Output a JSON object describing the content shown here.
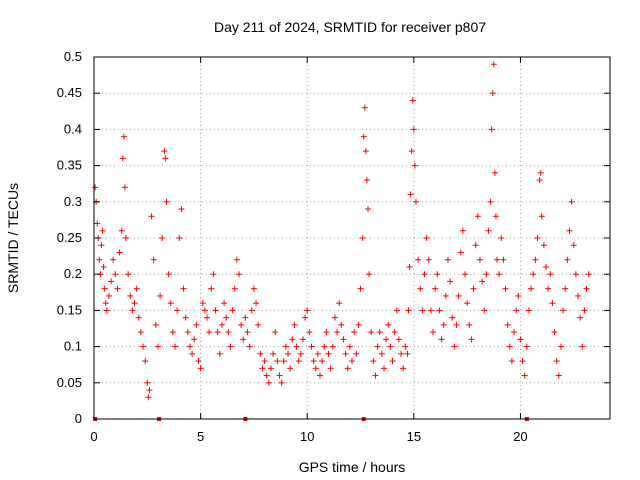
{
  "chart_data": {
    "type": "scatter",
    "title": "Day 211 of 2024, SRMTID for receiver p807",
    "xlabel": "GPS time / hours",
    "ylabel": "SRMTID / TECUs",
    "xlim": [
      0,
      24.2
    ],
    "ylim": [
      0,
      0.5
    ],
    "xticks": [
      0,
      5,
      10,
      15,
      20
    ],
    "xtick_labels": [
      "0",
      "5",
      "10",
      "15",
      "20"
    ],
    "yticks": [
      0,
      0.05,
      0.1,
      0.15,
      0.2,
      0.25,
      0.3,
      0.35,
      0.4,
      0.45,
      0.5
    ],
    "ytick_labels": [
      "0",
      "0.05",
      "0.1",
      "0.15",
      "0.2",
      "0.25",
      "0.3",
      "0.35",
      "0.4",
      "0.45",
      "0.5"
    ],
    "grid": true,
    "marker": "+",
    "color": "#ff0000",
    "series": [
      {
        "name": "SRMTID",
        "points": [
          [
            0.05,
            0.32
          ],
          [
            0.1,
            0.3
          ],
          [
            0.15,
            0.27
          ],
          [
            0.2,
            0.25
          ],
          [
            0.25,
            0.22
          ],
          [
            0.3,
            0.2
          ],
          [
            0.35,
            0.24
          ],
          [
            0.4,
            0.26
          ],
          [
            0.45,
            0.21
          ],
          [
            0.5,
            0.18
          ],
          [
            0.55,
            0.16
          ],
          [
            0.6,
            0.15
          ],
          [
            0.7,
            0.17
          ],
          [
            0.8,
            0.19
          ],
          [
            0.9,
            0.22
          ],
          [
            1.0,
            0.2
          ],
          [
            1.1,
            0.18
          ],
          [
            1.2,
            0.23
          ],
          [
            1.3,
            0.26
          ],
          [
            1.35,
            0.36
          ],
          [
            1.4,
            0.39
          ],
          [
            1.45,
            0.32
          ],
          [
            1.5,
            0.25
          ],
          [
            1.6,
            0.2
          ],
          [
            1.7,
            0.17
          ],
          [
            1.8,
            0.15
          ],
          [
            1.9,
            0.16
          ],
          [
            2.0,
            0.18
          ],
          [
            2.1,
            0.14
          ],
          [
            2.2,
            0.12
          ],
          [
            2.3,
            0.1
          ],
          [
            2.4,
            0.08
          ],
          [
            2.5,
            0.05
          ],
          [
            2.55,
            0.03
          ],
          [
            2.6,
            0.04
          ],
          [
            2.7,
            0.28
          ],
          [
            2.8,
            0.22
          ],
          [
            2.9,
            0.13
          ],
          [
            3.0,
            0.1
          ],
          [
            3.1,
            0.17
          ],
          [
            3.2,
            0.25
          ],
          [
            3.3,
            0.37
          ],
          [
            3.35,
            0.36
          ],
          [
            3.4,
            0.3
          ],
          [
            3.5,
            0.2
          ],
          [
            3.6,
            0.16
          ],
          [
            3.7,
            0.12
          ],
          [
            3.8,
            0.1
          ],
          [
            3.9,
            0.15
          ],
          [
            4.0,
            0.25
          ],
          [
            4.1,
            0.29
          ],
          [
            4.2,
            0.18
          ],
          [
            4.3,
            0.14
          ],
          [
            4.4,
            0.12
          ],
          [
            4.5,
            0.1
          ],
          [
            4.6,
            0.09
          ],
          [
            4.7,
            0.11
          ],
          [
            4.8,
            0.13
          ],
          [
            4.9,
            0.08
          ],
          [
            5.0,
            0.07
          ],
          [
            5.1,
            0.16
          ],
          [
            5.2,
            0.15
          ],
          [
            5.3,
            0.14
          ],
          [
            5.4,
            0.12
          ],
          [
            5.5,
            0.18
          ],
          [
            5.6,
            0.2
          ],
          [
            5.7,
            0.15
          ],
          [
            5.8,
            0.12
          ],
          [
            5.9,
            0.09
          ],
          [
            6.0,
            0.13
          ],
          [
            6.1,
            0.16
          ],
          [
            6.2,
            0.14
          ],
          [
            6.3,
            0.12
          ],
          [
            6.4,
            0.1
          ],
          [
            6.5,
            0.15
          ],
          [
            6.6,
            0.18
          ],
          [
            6.7,
            0.22
          ],
          [
            6.8,
            0.2
          ],
          [
            6.9,
            0.13
          ],
          [
            7.0,
            0.11
          ],
          [
            7.1,
            0.14
          ],
          [
            7.2,
            0.12
          ],
          [
            7.3,
            0.1
          ],
          [
            7.4,
            0.15
          ],
          [
            7.5,
            0.18
          ],
          [
            7.6,
            0.16
          ],
          [
            7.7,
            0.13
          ],
          [
            7.8,
            0.09
          ],
          [
            7.9,
            0.07
          ],
          [
            8.0,
            0.08
          ],
          [
            8.1,
            0.06
          ],
          [
            8.2,
            0.05
          ],
          [
            8.3,
            0.07
          ],
          [
            8.4,
            0.09
          ],
          [
            8.5,
            0.12
          ],
          [
            8.6,
            0.08
          ],
          [
            8.7,
            0.06
          ],
          [
            8.8,
            0.05
          ],
          [
            8.9,
            0.08
          ],
          [
            9.0,
            0.1
          ],
          [
            9.1,
            0.09
          ],
          [
            9.2,
            0.07
          ],
          [
            9.3,
            0.11
          ],
          [
            9.4,
            0.13
          ],
          [
            9.5,
            0.1
          ],
          [
            9.6,
            0.08
          ],
          [
            9.7,
            0.09
          ],
          [
            9.8,
            0.11
          ],
          [
            9.9,
            0.14
          ],
          [
            10.0,
            0.15
          ],
          [
            10.1,
            0.12
          ],
          [
            10.2,
            0.1
          ],
          [
            10.3,
            0.08
          ],
          [
            10.4,
            0.07
          ],
          [
            10.5,
            0.09
          ],
          [
            10.6,
            0.06
          ],
          [
            10.7,
            0.08
          ],
          [
            10.8,
            0.1
          ],
          [
            10.9,
            0.12
          ],
          [
            11.0,
            0.09
          ],
          [
            11.1,
            0.07
          ],
          [
            11.2,
            0.1
          ],
          [
            11.3,
            0.14
          ],
          [
            11.4,
            0.12
          ],
          [
            11.5,
            0.16
          ],
          [
            11.6,
            0.13
          ],
          [
            11.7,
            0.11
          ],
          [
            11.8,
            0.09
          ],
          [
            11.9,
            0.07
          ],
          [
            12.0,
            0.1
          ],
          [
            12.1,
            0.08
          ],
          [
            12.2,
            0.12
          ],
          [
            12.3,
            0.09
          ],
          [
            12.4,
            0.13
          ],
          [
            12.5,
            0.18
          ],
          [
            12.6,
            0.25
          ],
          [
            12.65,
            0.39
          ],
          [
            12.7,
            0.43
          ],
          [
            12.75,
            0.37
          ],
          [
            12.8,
            0.33
          ],
          [
            12.85,
            0.29
          ],
          [
            12.9,
            0.2
          ],
          [
            13.0,
            0.12
          ],
          [
            13.1,
            0.08
          ],
          [
            13.2,
            0.06
          ],
          [
            13.3,
            0.1
          ],
          [
            13.4,
            0.12
          ],
          [
            13.5,
            0.09
          ],
          [
            13.6,
            0.07
          ],
          [
            13.7,
            0.11
          ],
          [
            13.8,
            0.13
          ],
          [
            13.9,
            0.1
          ],
          [
            14.0,
            0.08
          ],
          [
            14.1,
            0.12
          ],
          [
            14.2,
            0.15
          ],
          [
            14.3,
            0.11
          ],
          [
            14.4,
            0.09
          ],
          [
            14.5,
            0.07
          ],
          [
            14.6,
            0.1
          ],
          [
            14.7,
            0.09
          ],
          [
            14.75,
            0.15
          ],
          [
            14.8,
            0.21
          ],
          [
            14.85,
            0.31
          ],
          [
            14.9,
            0.37
          ],
          [
            14.95,
            0.44
          ],
          [
            15.0,
            0.4
          ],
          [
            15.05,
            0.35
          ],
          [
            15.1,
            0.3
          ],
          [
            15.2,
            0.22
          ],
          [
            15.3,
            0.18
          ],
          [
            15.4,
            0.15
          ],
          [
            15.5,
            0.2
          ],
          [
            15.6,
            0.25
          ],
          [
            15.7,
            0.22
          ],
          [
            15.8,
            0.15
          ],
          [
            15.9,
            0.12
          ],
          [
            16.0,
            0.18
          ],
          [
            16.1,
            0.2
          ],
          [
            16.2,
            0.15
          ],
          [
            16.3,
            0.11
          ],
          [
            16.4,
            0.13
          ],
          [
            16.5,
            0.17
          ],
          [
            16.6,
            0.22
          ],
          [
            16.7,
            0.19
          ],
          [
            16.8,
            0.14
          ],
          [
            16.9,
            0.1
          ],
          [
            17.0,
            0.13
          ],
          [
            17.1,
            0.17
          ],
          [
            17.2,
            0.23
          ],
          [
            17.3,
            0.26
          ],
          [
            17.4,
            0.2
          ],
          [
            17.5,
            0.16
          ],
          [
            17.6,
            0.13
          ],
          [
            17.7,
            0.11
          ],
          [
            17.8,
            0.18
          ],
          [
            17.9,
            0.24
          ],
          [
            18.0,
            0.28
          ],
          [
            18.1,
            0.22
          ],
          [
            18.2,
            0.19
          ],
          [
            18.3,
            0.15
          ],
          [
            18.4,
            0.2
          ],
          [
            18.5,
            0.26
          ],
          [
            18.6,
            0.3
          ],
          [
            18.65,
            0.4
          ],
          [
            18.7,
            0.45
          ],
          [
            18.75,
            0.49
          ],
          [
            18.8,
            0.34
          ],
          [
            18.85,
            0.28
          ],
          [
            18.9,
            0.22
          ],
          [
            19.0,
            0.2
          ],
          [
            19.1,
            0.25
          ],
          [
            19.2,
            0.22
          ],
          [
            19.3,
            0.18
          ],
          [
            19.4,
            0.13
          ],
          [
            19.5,
            0.1
          ],
          [
            19.6,
            0.08
          ],
          [
            19.7,
            0.12
          ],
          [
            19.8,
            0.15
          ],
          [
            19.9,
            0.17
          ],
          [
            20.0,
            0.11
          ],
          [
            20.1,
            0.08
          ],
          [
            20.2,
            0.06
          ],
          [
            20.3,
            0.1
          ],
          [
            20.4,
            0.15
          ],
          [
            20.5,
            0.18
          ],
          [
            20.6,
            0.2
          ],
          [
            20.7,
            0.22
          ],
          [
            20.8,
            0.25
          ],
          [
            20.9,
            0.33
          ],
          [
            20.95,
            0.34
          ],
          [
            21.0,
            0.28
          ],
          [
            21.1,
            0.24
          ],
          [
            21.2,
            0.21
          ],
          [
            21.3,
            0.18
          ],
          [
            21.4,
            0.2
          ],
          [
            21.5,
            0.16
          ],
          [
            21.6,
            0.12
          ],
          [
            21.7,
            0.08
          ],
          [
            21.8,
            0.06
          ],
          [
            21.9,
            0.1
          ],
          [
            22.0,
            0.15
          ],
          [
            22.1,
            0.18
          ],
          [
            22.2,
            0.22
          ],
          [
            22.3,
            0.26
          ],
          [
            22.4,
            0.3
          ],
          [
            22.5,
            0.24
          ],
          [
            22.6,
            0.2
          ],
          [
            22.7,
            0.17
          ],
          [
            22.8,
            0.14
          ],
          [
            22.9,
            0.1
          ],
          [
            23.0,
            0.15
          ],
          [
            23.1,
            0.18
          ],
          [
            23.2,
            0.2
          ]
        ]
      }
    ],
    "zero_markers": [
      0.05,
      3.05,
      7.1,
      12.65,
      20.3
    ]
  }
}
